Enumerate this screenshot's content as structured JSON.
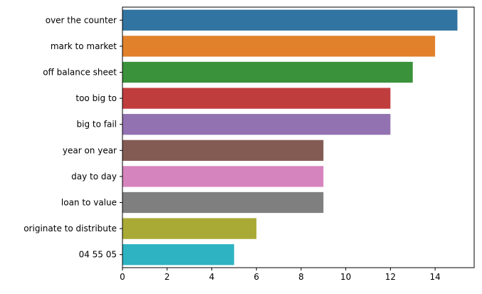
{
  "chart_data": {
    "type": "bar",
    "orientation": "horizontal",
    "categories": [
      "over the counter",
      "mark to market",
      "off balance sheet",
      "too big to",
      "big to fail",
      "year on year",
      "day to day",
      "loan to value",
      "originate to distribute",
      "04 55 05"
    ],
    "values": [
      15,
      14,
      13,
      12,
      12,
      9,
      9,
      9,
      6,
      5
    ],
    "colors": [
      "#3274a1",
      "#e1812c",
      "#3a923a",
      "#c03d3e",
      "#9372b2",
      "#845b53",
      "#d684bd",
      "#7f7f7f",
      "#a9aa35",
      "#2eb3c2"
    ],
    "xticks": [
      0,
      2,
      4,
      6,
      8,
      10,
      12,
      14
    ],
    "xlim": [
      0,
      15.75
    ],
    "title": "",
    "xlabel": "",
    "ylabel": "",
    "grid": false,
    "legend": "none"
  }
}
